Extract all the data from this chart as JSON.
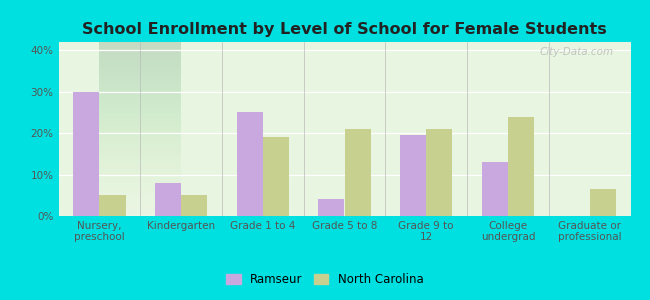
{
  "title": "School Enrollment by Level of School for Female Students",
  "categories": [
    "Nursery,\npreschool",
    "Kindergarten",
    "Grade 1 to 4",
    "Grade 5 to 8",
    "Grade 9 to\n12",
    "College\nundergrad",
    "Graduate or\nprofessional"
  ],
  "ramseur": [
    30,
    8,
    25,
    4,
    19.5,
    13,
    0
  ],
  "north_carolina": [
    5,
    5,
    19,
    21,
    21,
    24,
    6.5
  ],
  "ramseur_color": "#c9a8e0",
  "nc_color": "#c8d090",
  "background_outer": "#00e0e0",
  "background_inner_top": "#e8f5e0",
  "background_inner_bottom": "#d0eee0",
  "ylim": [
    0,
    42
  ],
  "yticks": [
    0,
    10,
    20,
    30,
    40
  ],
  "ytick_labels": [
    "0%",
    "10%",
    "20%",
    "30%",
    "40%"
  ],
  "legend_ramseur": "Ramseur",
  "legend_nc": "North Carolina",
  "bar_width": 0.32,
  "title_fontsize": 11.5,
  "tick_fontsize": 7.5,
  "legend_fontsize": 8.5,
  "watermark": "City-Data.com"
}
